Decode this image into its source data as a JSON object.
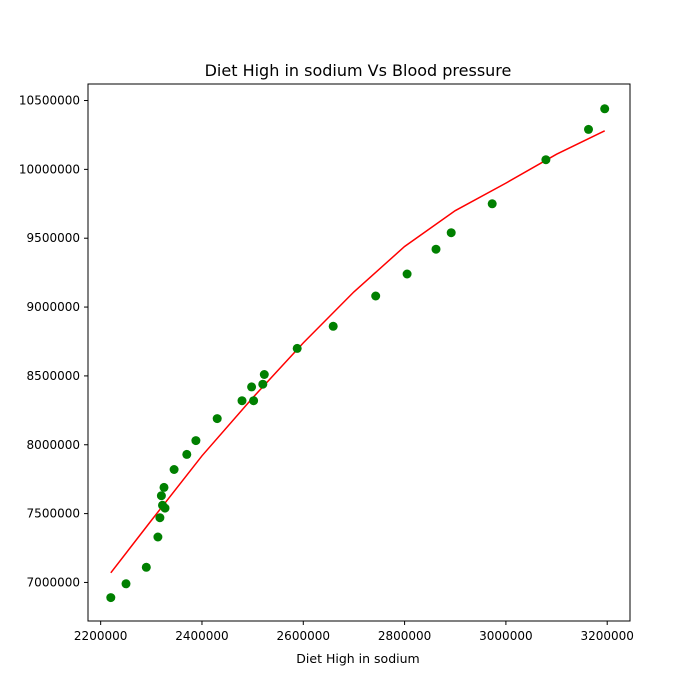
{
  "chart_data": {
    "type": "scatter",
    "title": "Diet High in sodium Vs Blood pressure",
    "xlabel": "Diet High in sodium",
    "ylabel": "",
    "xlim": [
      2175000,
      3245000
    ],
    "ylim": [
      6720000,
      10620000
    ],
    "xticks": [
      2200000,
      2400000,
      2600000,
      2800000,
      3000000,
      3200000
    ],
    "yticks": [
      7000000,
      7500000,
      8000000,
      8500000,
      9000000,
      9500000,
      10000000,
      10500000
    ],
    "grid": false,
    "series": [
      {
        "kind": "scatter",
        "color": "#008000",
        "points": [
          [
            2220000,
            6890000
          ],
          [
            2250000,
            6990000
          ],
          [
            2290000,
            7110000
          ],
          [
            2313000,
            7330000
          ],
          [
            2317000,
            7470000
          ],
          [
            2320000,
            7630000
          ],
          [
            2322000,
            7560000
          ],
          [
            2325000,
            7690000
          ],
          [
            2327000,
            7540000
          ],
          [
            2345000,
            7820000
          ],
          [
            2370000,
            7930000
          ],
          [
            2388000,
            8030000
          ],
          [
            2430000,
            8190000
          ],
          [
            2479000,
            8320000
          ],
          [
            2498000,
            8420000
          ],
          [
            2502000,
            8320000
          ],
          [
            2520000,
            8440000
          ],
          [
            2523000,
            8510000
          ],
          [
            2588000,
            8700000
          ],
          [
            2659000,
            8860000
          ],
          [
            2743000,
            9080000
          ],
          [
            2805000,
            9240000
          ],
          [
            2862000,
            9420000
          ],
          [
            2892000,
            9540000
          ],
          [
            2973000,
            9750000
          ],
          [
            3079000,
            10070000
          ],
          [
            3163000,
            10290000
          ],
          [
            3195000,
            10440000
          ]
        ]
      },
      {
        "kind": "line",
        "color": "#ff0000",
        "points": [
          [
            2220000,
            7070000
          ],
          [
            2300000,
            7450000
          ],
          [
            2400000,
            7920000
          ],
          [
            2500000,
            8340000
          ],
          [
            2600000,
            8740000
          ],
          [
            2700000,
            9110000
          ],
          [
            2800000,
            9440000
          ],
          [
            2900000,
            9700000
          ],
          [
            3000000,
            9900000
          ],
          [
            3100000,
            10110000
          ],
          [
            3195000,
            10280000
          ]
        ]
      }
    ]
  }
}
